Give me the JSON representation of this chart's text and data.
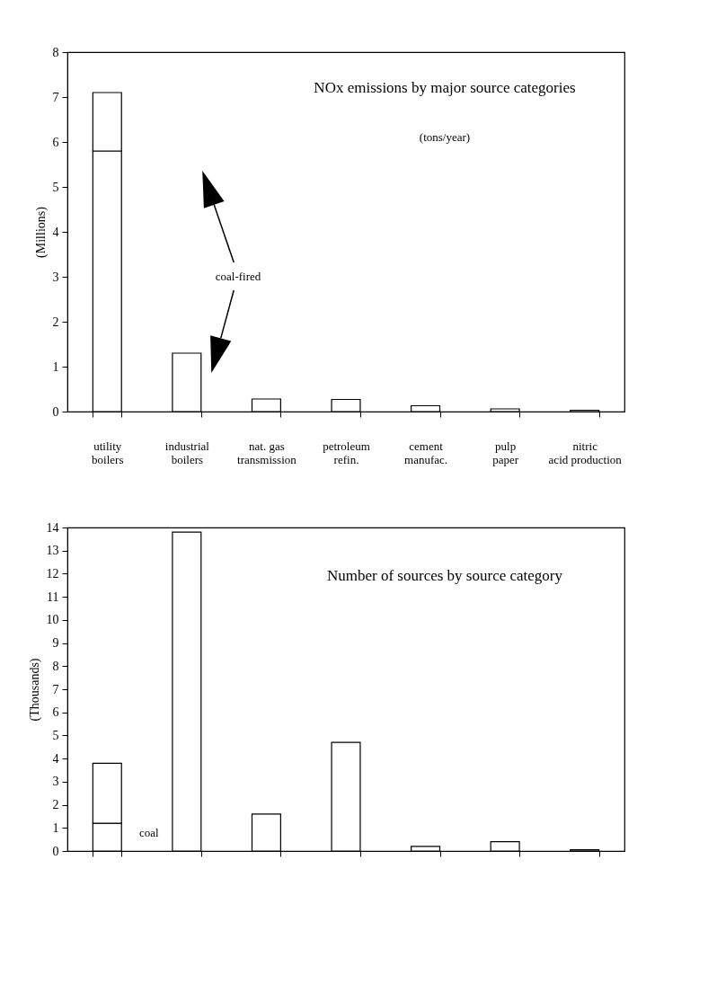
{
  "chart_data": [
    {
      "type": "bar",
      "title": "NOx emissions by major source categories",
      "subtitle": "(tons/year)",
      "ylabel": "(Millions)",
      "categories": [
        "utility\nboilers",
        "industrial\nboilers",
        "nat. gas\ntransmission",
        "petroleum\nrefin.",
        "cement\nmanufac.",
        "pulp\npaper",
        "nitric\nacid production"
      ],
      "stacked": true,
      "series": [
        {
          "color": "#ffffff",
          "values": [
            5.8,
            1.3,
            0.28,
            0.27,
            0.13,
            0.06,
            0.03
          ]
        },
        {
          "color": "#ffffff",
          "values": [
            1.3,
            null,
            null,
            null,
            null,
            null,
            null
          ]
        }
      ],
      "ylim": [
        0,
        8
      ],
      "yticks": [
        0,
        1,
        2,
        3,
        4,
        5,
        6,
        7,
        8
      ],
      "grid": false,
      "annotations": [
        "coal-fired"
      ]
    },
    {
      "type": "bar",
      "title": "Number of sources by source category",
      "ylabel": "(Thousands)",
      "categories": [
        null,
        null,
        null,
        null,
        null,
        null,
        null
      ],
      "stacked": true,
      "series": [
        {
          "color": "#ffffff",
          "values": [
            1.2,
            13.8,
            1.6,
            4.7,
            0.2,
            0.4,
            0.05
          ]
        },
        {
          "color": "#ffffff",
          "values": [
            2.6,
            null,
            null,
            null,
            null,
            null,
            null
          ]
        }
      ],
      "ylim": [
        0,
        14
      ],
      "yticks": [
        0,
        1,
        2,
        3,
        4,
        5,
        6,
        7,
        8,
        9,
        10,
        11,
        12,
        13,
        14
      ],
      "grid": false,
      "annotations": [
        "coal"
      ]
    }
  ]
}
